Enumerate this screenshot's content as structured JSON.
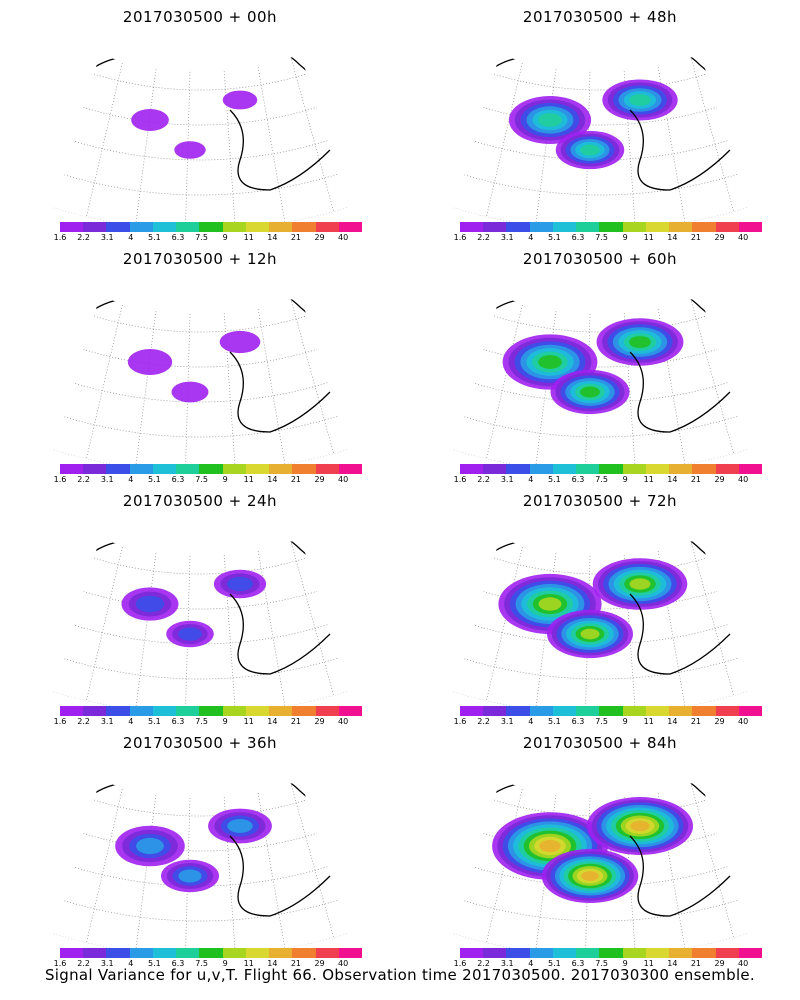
{
  "caption": "Signal Variance for u,v,T. Flight 66. Observation time 2017030500. 2017030300 ensemble.",
  "colorbar": {
    "labels": [
      "1.6",
      "2.2",
      "3.1",
      "4",
      "5.1",
      "6.3",
      "7.5",
      "9",
      "11",
      "14",
      "21",
      "29",
      "40"
    ],
    "colors": [
      "#a020f0",
      "#7a2ad8",
      "#3b4fe8",
      "#2a9be6",
      "#1ec0d8",
      "#1fcf9a",
      "#20c020",
      "#a8d620",
      "#d8d830",
      "#e8b030",
      "#f08030",
      "#f04050",
      "#f01090"
    ]
  },
  "panels": [
    {
      "title": "2017030500 + 00h",
      "level": 0.02
    },
    {
      "title": "2017030500 + 48h",
      "level": 0.55
    },
    {
      "title": "2017030500 + 12h",
      "level": 0.1
    },
    {
      "title": "2017030500 + 60h",
      "level": 0.7
    },
    {
      "title": "2017030500 + 24h",
      "level": 0.25
    },
    {
      "title": "2017030500 + 72h",
      "level": 0.8
    },
    {
      "title": "2017030500 + 36h",
      "level": 0.4
    },
    {
      "title": "2017030500 + 84h",
      "level": 0.95
    }
  ]
}
